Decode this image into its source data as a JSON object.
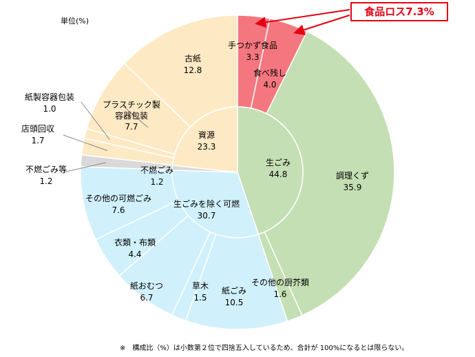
{
  "chart_data": {
    "type": "pie",
    "unit_label": "単位(%)",
    "inner_ring": [
      {
        "label": "生ごみ",
        "value": 44.8,
        "color": "#c5dfb4"
      },
      {
        "label": "生ごみを除く可燃",
        "value": 30.7,
        "color": "#d0f0fb"
      },
      {
        "label": "不燃ごみ",
        "value": 1.2,
        "color": "#d9d9d9"
      },
      {
        "label": "資源",
        "value": 23.3,
        "color": "#fde9c4"
      }
    ],
    "outer_ring": [
      {
        "label": "手つかず食品",
        "value": 3.3,
        "color": "#f4777f"
      },
      {
        "label": "食べ残し",
        "value": 4.0,
        "color": "#f4777f"
      },
      {
        "label": "調理くず",
        "value": 35.9,
        "color": "#c5dfb4"
      },
      {
        "label": "その他の厨芥類",
        "value": 1.6,
        "color": "#c5dfb4"
      },
      {
        "label": "紙ごみ",
        "value": 10.5,
        "color": "#d0f0fb"
      },
      {
        "label": "草木",
        "value": 1.5,
        "color": "#d0f0fb"
      },
      {
        "label": "紙おむつ",
        "value": 6.7,
        "color": "#d0f0fb"
      },
      {
        "label": "衣類・布類",
        "value": 4.4,
        "color": "#d0f0fb"
      },
      {
        "label": "その他の可燃ごみ",
        "value": 7.6,
        "color": "#d0f0fb"
      },
      {
        "label": "不燃ごみ等",
        "value": 1.2,
        "color": "#d9d9d9"
      },
      {
        "label": "店頭回収",
        "value": 1.7,
        "color": "#fde9c4"
      },
      {
        "label": "紙製容器包装",
        "value": 1.0,
        "color": "#fde9c4"
      },
      {
        "label": "プラスチック製容器包装",
        "value": 7.7,
        "color": "#fde9c4"
      },
      {
        "label": "古紙",
        "value": 12.8,
        "color": "#fde9c4"
      }
    ],
    "callout": {
      "text": "食品ロス7.3%",
      "color": "#e60012"
    },
    "footnote": "※　構成比（%）は小数第２位で四捨五入しているため、合計が 100%になるとは限らない。"
  }
}
